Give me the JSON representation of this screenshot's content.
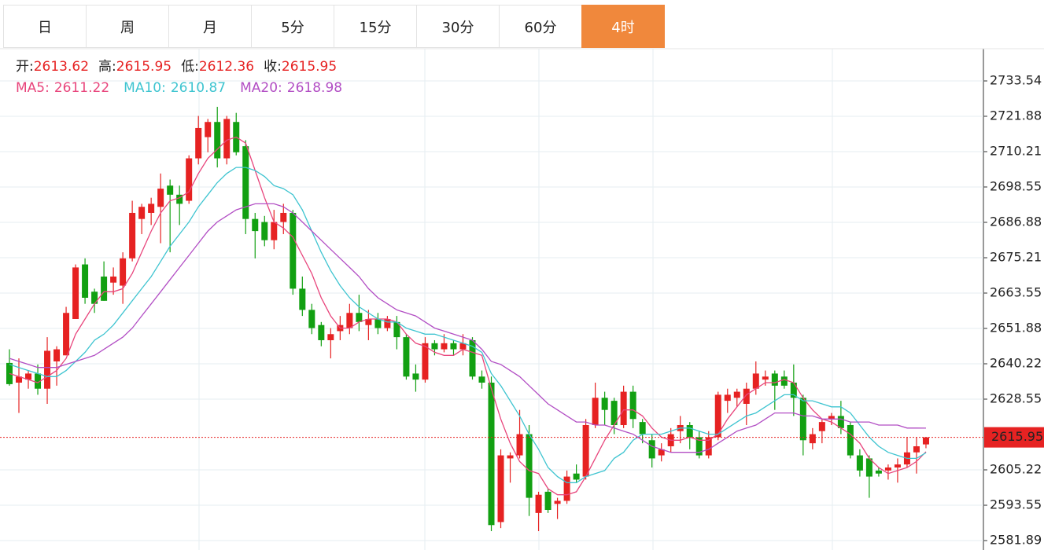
{
  "tabs": [
    "日",
    "周",
    "月",
    "5分",
    "15分",
    "30分",
    "60分",
    "4时"
  ],
  "active_tab": 7,
  "chart_data": {
    "type": "candlestick",
    "open": [
      2640.5,
      2634,
      2635,
      2637,
      2632,
      2641,
      2643,
      2655,
      2673,
      2664,
      2669,
      2667,
      2666,
      2675,
      2688,
      2690,
      2692,
      2699,
      2696,
      2694,
      2708,
      2715,
      2720,
      2708,
      2720,
      2712,
      2688,
      2687,
      2681,
      2687,
      2690,
      2665,
      2658,
      2653,
      2648,
      2651,
      2652,
      2657,
      2653,
      2655,
      2652,
      2654,
      2649,
      2637,
      2635,
      2647,
      2645,
      2647,
      2645,
      2648,
      2636,
      2634,
      2588,
      2609,
      2610,
      2617,
      2591,
      2598,
      2594,
      2595,
      2604,
      2603,
      2620,
      2629,
      2628,
      2620,
      2631,
      2621,
      2615,
      2610,
      2613,
      2618,
      2620,
      2616,
      2610,
      2616,
      2628,
      2629,
      2627,
      2632,
      2635,
      2637,
      2636,
      2634,
      2629,
      2614,
      2618,
      2622,
      2623,
      2620,
      2610,
      2609,
      2605,
      2605,
      2606,
      2607,
      2611,
      2613.62
    ],
    "high": [
      2645,
      2642,
      2638,
      2640,
      2649,
      2646,
      2659,
      2673,
      2675,
      2665,
      2674,
      2672,
      2677,
      2694,
      2693,
      2695,
      2703,
      2701,
      2699,
      2709,
      2722,
      2721,
      2725,
      2722,
      2723,
      2714,
      2690,
      2689,
      2691,
      2693,
      2691,
      2669,
      2660,
      2654,
      2652,
      2656,
      2660,
      2663,
      2658,
      2657,
      2656,
      2656,
      2650,
      2640,
      2649,
      2648,
      2650,
      2648,
      2650,
      2649,
      2638,
      2636,
      2612,
      2611,
      2625,
      2620,
      2598,
      2599,
      2596,
      2605,
      2607,
      2622,
      2634,
      2631,
      2629,
      2633,
      2633,
      2622,
      2617,
      2614,
      2619,
      2623,
      2621,
      2618,
      2618,
      2631,
      2632,
      2632,
      2634,
      2641,
      2638,
      2638,
      2638,
      2640,
      2630,
      2619,
      2622,
      2624,
      2628,
      2621,
      2612,
      2610,
      2606,
      2607,
      2609,
      2616,
      2616,
      2615.95
    ],
    "low": [
      2633,
      2624,
      2632,
      2630,
      2627,
      2633,
      2643,
      2655,
      2660,
      2657,
      2661,
      2663,
      2660,
      2674,
      2683,
      2686,
      2680,
      2677,
      2686,
      2693,
      2706,
      2710,
      2705,
      2706,
      2709,
      2683,
      2675,
      2679,
      2678,
      2683,
      2663,
      2656,
      2650,
      2646,
      2642,
      2648,
      2650,
      2651,
      2648,
      2650,
      2651,
      2645,
      2635,
      2631,
      2634,
      2643,
      2644,
      2643,
      2643,
      2635,
      2632,
      2585,
      2586,
      2601,
      2609,
      2590,
      2585,
      2591,
      2589,
      2594,
      2601,
      2602,
      2619,
      2620,
      2617,
      2619,
      2619,
      2614,
      2606,
      2608,
      2611,
      2614,
      2612,
      2609,
      2609,
      2615,
      2624,
      2626,
      2620,
      2630,
      2633,
      2625,
      2632,
      2623,
      2610,
      2612,
      2614,
      2620,
      2617,
      2609,
      2603,
      2596,
      2603,
      2602,
      2601,
      2606,
      2604,
      2612.36
    ],
    "close": [
      2633.5,
      2636,
      2637,
      2632,
      2644.5,
      2645,
      2657,
      2672,
      2662,
      2660,
      2661,
      2669,
      2675,
      2690,
      2692,
      2693,
      2698,
      2696,
      2693,
      2708,
      2718,
      2720,
      2708,
      2721,
      2710,
      2688,
      2684,
      2681,
      2687,
      2690,
      2665,
      2658,
      2652,
      2648,
      2650,
      2653,
      2657,
      2654,
      2655,
      2652,
      2655,
      2649,
      2636,
      2635,
      2647,
      2645,
      2647,
      2645,
      2647,
      2636,
      2634,
      2587,
      2610,
      2610,
      2617,
      2596,
      2597,
      2592,
      2595,
      2603,
      2602,
      2620,
      2629,
      2625,
      2620,
      2631,
      2622,
      2617,
      2609,
      2612,
      2617,
      2620,
      2616,
      2610,
      2616,
      2630,
      2630,
      2631,
      2632,
      2637,
      2636,
      2633,
      2633,
      2629,
      2615,
      2617,
      2621,
      2623,
      2619,
      2610,
      2605,
      2603,
      2604,
      2606,
      2607,
      2611,
      2613,
      2615.95
    ],
    "up_color": "#e62222",
    "down_color": "#12a012",
    "ohlc_labels": [
      "开:",
      "高:",
      "低:",
      "收:"
    ],
    "ma": [
      {
        "label": "MA5:",
        "color": "#e8457c",
        "values": [
          2637,
          2636,
          2635,
          2634,
          2636,
          2638,
          2642,
          2650,
          2655,
          2660,
          2664,
          2664,
          2665,
          2670,
          2677,
          2684,
          2690,
          2694,
          2695,
          2697,
          2703,
          2708,
          2711,
          2714,
          2715,
          2713,
          2704,
          2695,
          2687,
          2685,
          2682,
          2676,
          2670,
          2662,
          2656,
          2652,
          2652,
          2654,
          2655,
          2655,
          2655,
          2654,
          2650,
          2647,
          2646,
          2644,
          2643,
          2643,
          2645,
          2644,
          2643,
          2632,
          2622,
          2614,
          2608,
          2605,
          2604,
          2599,
          2597,
          2597,
          2598,
          2603,
          2609,
          2615,
          2620,
          2625,
          2625,
          2623,
          2619,
          2616,
          2615,
          2615,
          2616,
          2615,
          2615,
          2617,
          2622,
          2626,
          2630,
          2632,
          2634,
          2634,
          2635,
          2634,
          2629,
          2625,
          2622,
          2621,
          2619,
          2617,
          2614,
          2609,
          2606,
          2604,
          2605,
          2606,
          2608,
          2611.22
        ]
      },
      {
        "label": "MA10:",
        "color": "#3ec4d0",
        "values": [
          2640,
          2639,
          2638,
          2637,
          2636,
          2636,
          2638,
          2641,
          2644,
          2648,
          2650,
          2653,
          2657,
          2661,
          2665,
          2669,
          2674,
          2679,
          2683,
          2687,
          2692,
          2696,
          2700,
          2703,
          2705,
          2705,
          2704,
          2702,
          2699,
          2698,
          2696,
          2691,
          2684,
          2677,
          2671,
          2666,
          2662,
          2659,
          2657,
          2655,
          2654,
          2654,
          2652,
          2651,
          2650,
          2650,
          2649,
          2648,
          2647,
          2646,
          2644,
          2637,
          2633,
          2628,
          2623,
          2617,
          2612,
          2606,
          2603,
          2601,
          2601,
          2603,
          2604,
          2605,
          2609,
          2611,
          2615,
          2617,
          2617,
          2617,
          2618,
          2619,
          2619,
          2618,
          2617,
          2617,
          2619,
          2621,
          2623,
          2624,
          2626,
          2628,
          2630,
          2630,
          2628,
          2628,
          2627,
          2626,
          2626,
          2624,
          2620,
          2616,
          2613,
          2611,
          2610,
          2609,
          2609,
          2610.87
        ]
      },
      {
        "label": "MA20:",
        "color": "#b24ec4",
        "values": [
          2642,
          2641,
          2640,
          2639,
          2639,
          2639,
          2640,
          2641,
          2642,
          2643,
          2645,
          2647,
          2649,
          2652,
          2656,
          2660,
          2664,
          2668,
          2672,
          2676,
          2680,
          2684,
          2687,
          2689,
          2691,
          2692,
          2693,
          2693,
          2693,
          2692,
          2690,
          2687,
          2684,
          2681,
          2678,
          2675,
          2672,
          2669,
          2665,
          2662,
          2660,
          2658,
          2657,
          2656,
          2654,
          2652,
          2651,
          2650,
          2649,
          2648,
          2645,
          2641,
          2640,
          2638,
          2636,
          2633,
          2630,
          2627,
          2625,
          2623,
          2621,
          2621,
          2620,
          2620,
          2619,
          2618,
          2617,
          2615,
          2613,
          2612,
          2611,
          2611,
          2611,
          2611,
          2612,
          2614,
          2616,
          2618,
          2619,
          2620,
          2622,
          2624,
          2624,
          2624,
          2623,
          2623,
          2622,
          2622,
          2622,
          2621,
          2621,
          2621,
          2620,
          2620,
          2620,
          2619,
          2619,
          2618.98
        ]
      }
    ],
    "ylim": [
      2578.78,
      2744.17
    ],
    "yticks": [
      2581.89,
      2593.55,
      2605.22,
      2628.55,
      2640.22,
      2651.88,
      2663.55,
      2675.21,
      2686.88,
      2698.55,
      2710.21,
      2721.88,
      2733.54
    ],
    "grid": true,
    "price_line_color": "#e62222"
  }
}
